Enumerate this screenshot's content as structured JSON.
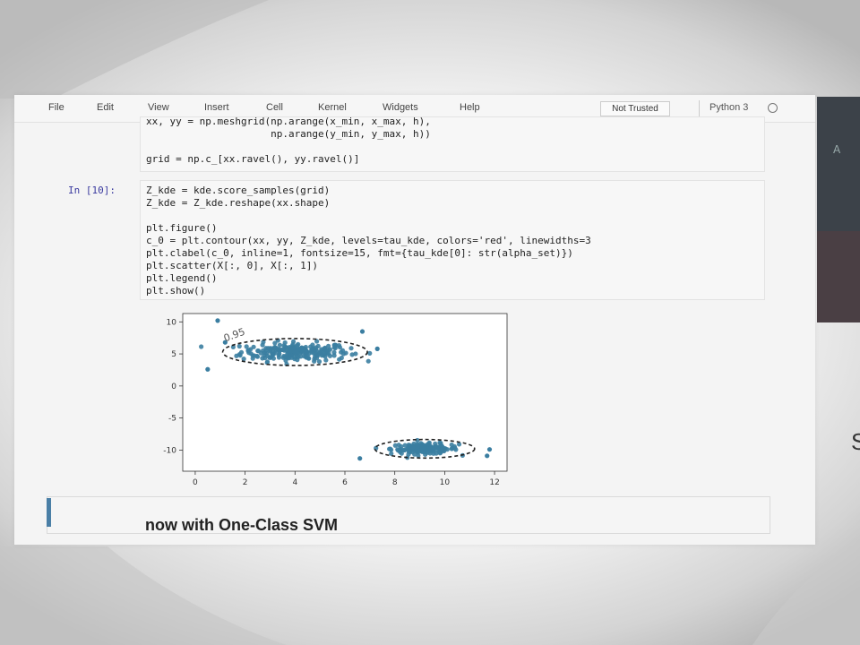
{
  "menubar": {
    "items": [
      "File",
      "Edit",
      "View",
      "Insert",
      "Cell",
      "Kernel",
      "Widgets",
      "Help"
    ],
    "trust_status": "Not Trusted",
    "kernel_name": "Python 3"
  },
  "cells": {
    "prev_code": [
      "xx, yy = np.meshgrid(np.arange(x_min, x_max, h),",
      "                     np.arange(y_min, y_max, h))",
      "",
      "grid = np.c_[xx.ravel(), yy.ravel()]"
    ],
    "current_prompt": "In [10]:",
    "current_code": [
      "Z_kde = kde.score_samples(grid)",
      "Z_kde = Z_kde.reshape(xx.shape)",
      "",
      "plt.figure()",
      "c_0 = plt.contour(xx, yy, Z_kde, levels=tau_kde, colors='red', linewidths=3",
      "plt.clabel(c_0, inline=1, fontsize=15, fmt={tau_kde[0]: str(alpha_set)})",
      "plt.scatter(X[:, 0], X[:, 1])",
      "plt.legend()",
      "plt.show()"
    ],
    "markdown_heading": "now with One-Class SVM"
  },
  "side": {
    "panel_text": "A"
  },
  "edge_glyph": "S",
  "chart_data": {
    "type": "scatter",
    "xlim": [
      -0.5,
      12.5
    ],
    "ylim": [
      -13.3,
      11.3
    ],
    "xticks": [
      "0",
      "2",
      "4",
      "6",
      "8",
      "10",
      "12"
    ],
    "yticks": [
      "10",
      "5",
      "0",
      "-5",
      "-10"
    ],
    "point_color": "#3b7ea1",
    "contour_color": "#222222",
    "contour_label": "0.95",
    "clusters": [
      {
        "center": [
          4.0,
          5.3
        ],
        "radius": [
          2.4,
          1.6
        ],
        "count": 230,
        "contour_radius": [
          2.9,
          2.1
        ]
      },
      {
        "center": [
          9.2,
          -9.8
        ],
        "radius": [
          1.5,
          0.9
        ],
        "count": 160,
        "contour_radius": [
          2.0,
          1.45
        ]
      }
    ],
    "outliers": [
      [
        0.9,
        10.2
      ],
      [
        0.5,
        2.6
      ],
      [
        1.2,
        6.8
      ],
      [
        7.3,
        5.8
      ],
      [
        6.7,
        8.5
      ],
      [
        11.7,
        -10.9
      ],
      [
        11.8,
        -9.9
      ],
      [
        6.6,
        -11.3
      ]
    ]
  }
}
